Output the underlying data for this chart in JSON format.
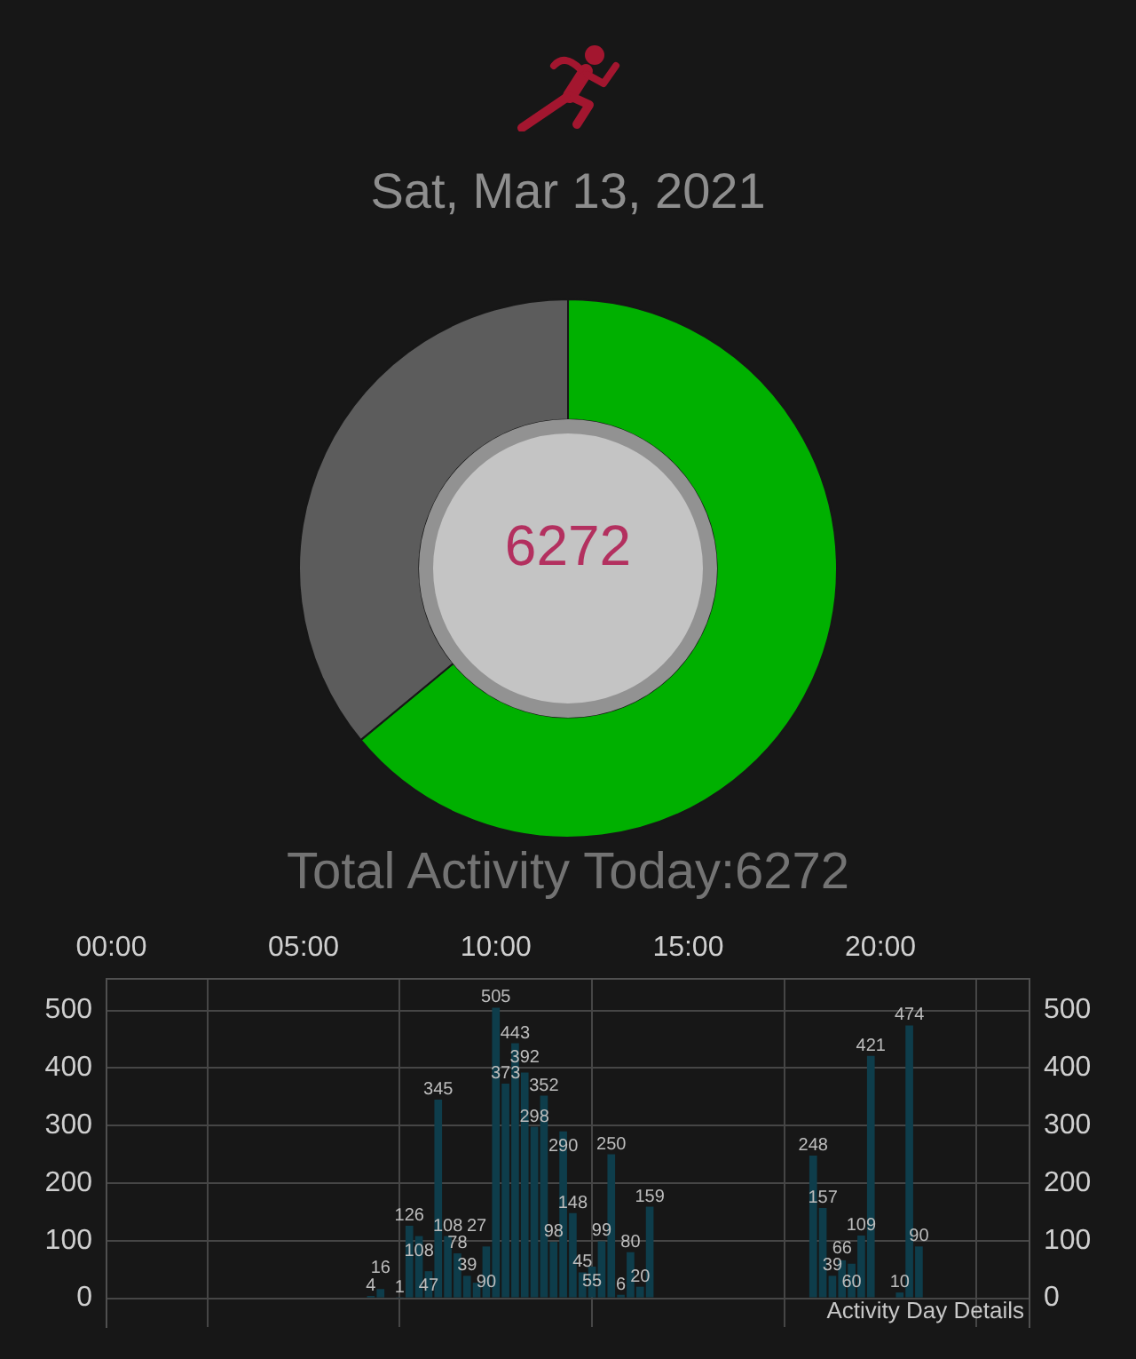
{
  "chart_data": [
    {
      "type": "donut",
      "title": "Sat, Mar 13, 2021",
      "categories": [
        null,
        null
      ],
      "values": [
        64,
        36
      ],
      "colors": [
        "#00b000",
        "#5c5c5c"
      ],
      "annotations": [
        "6272",
        "Total Activity Today:6272"
      ]
    },
    {
      "type": "bar",
      "x": [
        6.75,
        7,
        7.5,
        7.75,
        8,
        8.25,
        8.5,
        8.75,
        9,
        9.25,
        9.5,
        9.75,
        10,
        10.25,
        10.5,
        10.75,
        11,
        11.25,
        11.5,
        11.75,
        12,
        12.25,
        12.5,
        12.75,
        13,
        13.25,
        13.5,
        13.75,
        14,
        18.25,
        18.5,
        18.75,
        19,
        19.25,
        19.5,
        19.75,
        20.5,
        20.75,
        21
      ],
      "values": [
        4,
        16,
        1,
        126,
        108,
        47,
        345,
        108,
        78,
        39,
        27,
        90,
        505,
        373,
        443,
        392,
        298,
        352,
        98,
        290,
        148,
        45,
        55,
        99,
        250,
        6,
        80,
        20,
        159,
        248,
        157,
        39,
        66,
        60,
        109,
        421,
        10,
        474,
        90
      ],
      "color": "#0e3d4b",
      "xlim": [
        -0.125,
        23.875
      ],
      "xticks": [
        {
          "value": 0,
          "label": "00:00"
        },
        {
          "value": 5,
          "label": "05:00"
        },
        {
          "value": 10,
          "label": "10:00"
        },
        {
          "value": 15,
          "label": "15:00"
        },
        {
          "value": 20,
          "label": "20:00"
        }
      ],
      "ylim": [
        -50,
        555
      ],
      "yticks": [
        0,
        100,
        200,
        300,
        400,
        500
      ],
      "y2lim": [
        -50,
        555
      ],
      "y2ticks": [
        0,
        100,
        200,
        300,
        400,
        500
      ],
      "grid": true,
      "data_labels": true,
      "annotations": [
        "Activity Day Details"
      ]
    }
  ]
}
